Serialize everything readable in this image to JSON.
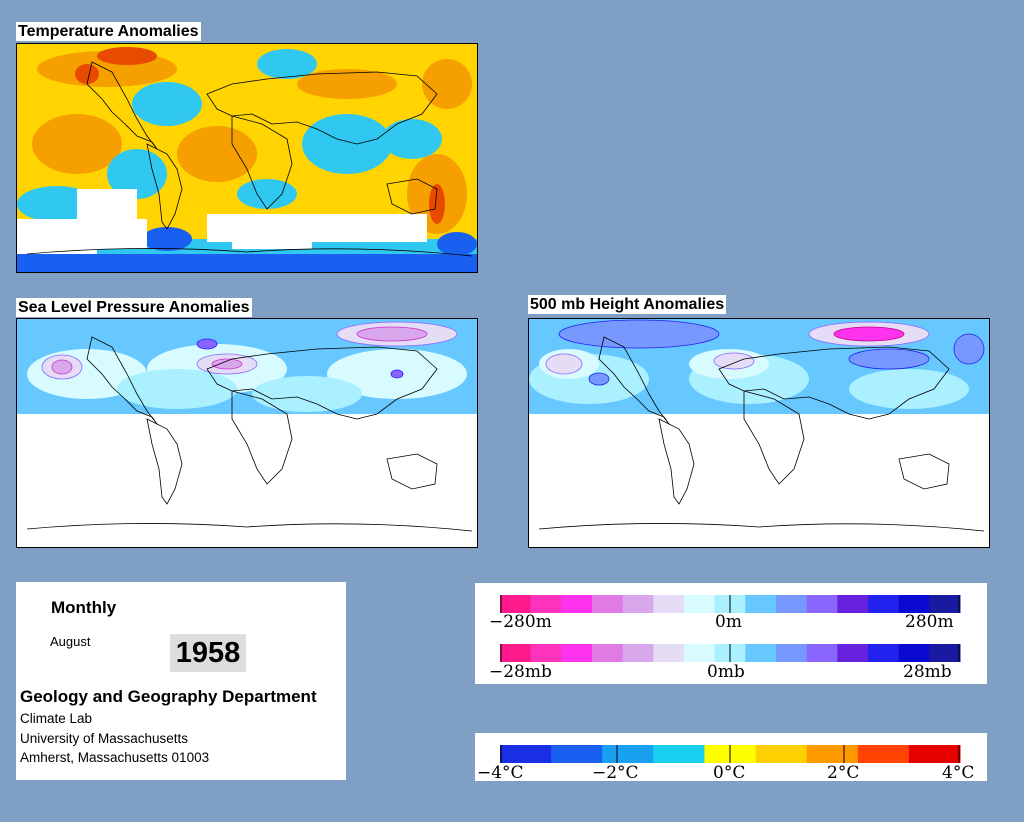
{
  "panels": {
    "temperature": {
      "title": "Temperature Anomalies"
    },
    "slp": {
      "title": "Sea Level Pressure Anomalies"
    },
    "height500": {
      "title": "500 mb Height Anomalies"
    }
  },
  "info": {
    "frequency": "Monthly",
    "month": "August",
    "year": "1958",
    "department": "Geology and Geography Department",
    "address": [
      "Climate Lab",
      "University of Massachusetts",
      "Amherst, Massachusetts 01003"
    ]
  },
  "legends": {
    "height": {
      "labels": [
        "−280m",
        "0m",
        "280m"
      ]
    },
    "pressure": {
      "labels": [
        "−28mb",
        "0mb",
        "28mb"
      ]
    },
    "temperature": {
      "labels": [
        "−4°C",
        "−2°C",
        "0°C",
        "2°C",
        "4°C"
      ]
    }
  },
  "colors": {
    "background": "#7f9fc4",
    "anomaly_scale": [
      "#ff1a8c",
      "#ff33bb",
      "#ff33ee",
      "#e27ae6",
      "#d9a8ec",
      "#e5dcf6",
      "#d8fbff",
      "#aaf0ff",
      "#66c8ff",
      "#7799ff",
      "#8866ff",
      "#6622dd",
      "#2222ee",
      "#0a0ad2",
      "#1a1aa0"
    ],
    "temperature_scale": [
      "#1a2ee6",
      "#1a60f0",
      "#1aa0f0",
      "#1ad0f0",
      "#ffff00",
      "#ffd000",
      "#ff9a00",
      "#ff4400",
      "#e60000"
    ]
  }
}
